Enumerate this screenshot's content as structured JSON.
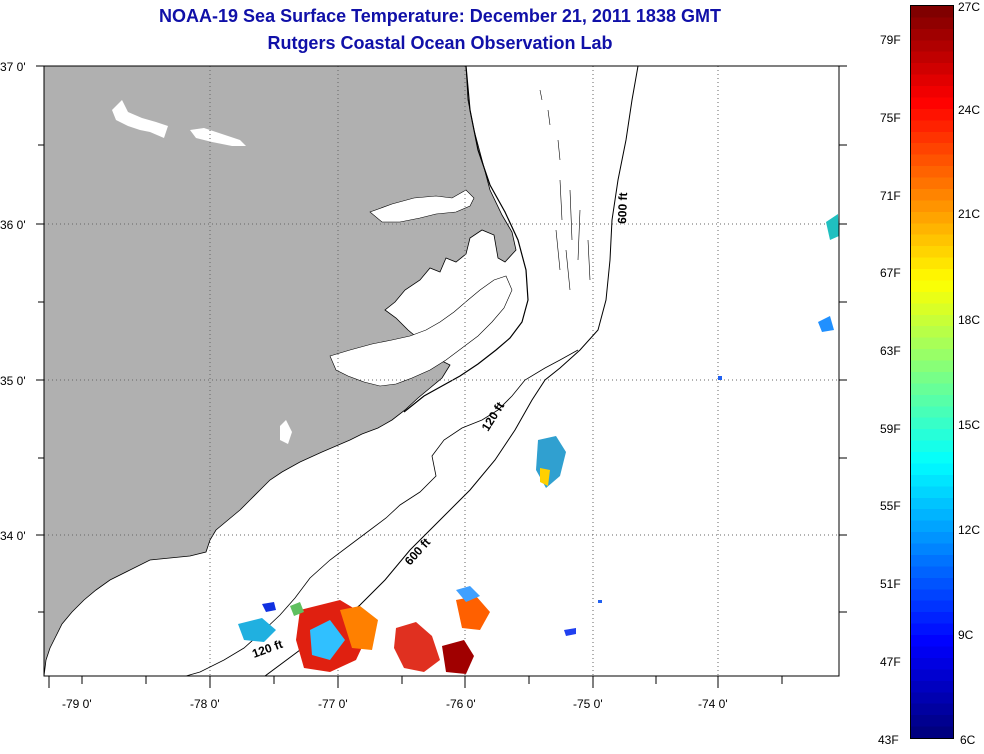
{
  "header": {
    "title": "NOAA-19 Sea Surface Temperature:  December 21, 2011 1838 GMT",
    "subtitle": "Rutgers Coastal Ocean Observation Lab"
  },
  "map": {
    "lat_labels": [
      "37 0'",
      "36 0'",
      "35 0'",
      "34 0'"
    ],
    "lon_labels": [
      "-79 0'",
      "-78 0'",
      "-77 0'",
      "-76 0'",
      "-75 0'",
      "-74 0'"
    ],
    "contour_labels": [
      "600 ft",
      "120 ft",
      "600 ft",
      "120 ft"
    ],
    "land_color": "#b0b0b0"
  },
  "colorbar": {
    "fahrenheit_labels": [
      "79F",
      "75F",
      "71F",
      "67F",
      "63F",
      "59F",
      "55F",
      "51F",
      "47F",
      "43F"
    ],
    "celsius_labels": [
      "27C",
      "24C",
      "21C",
      "18C",
      "15C",
      "12C",
      "9C",
      "6C"
    ],
    "range_celsius": [
      6,
      27
    ],
    "colormap": "jet"
  }
}
